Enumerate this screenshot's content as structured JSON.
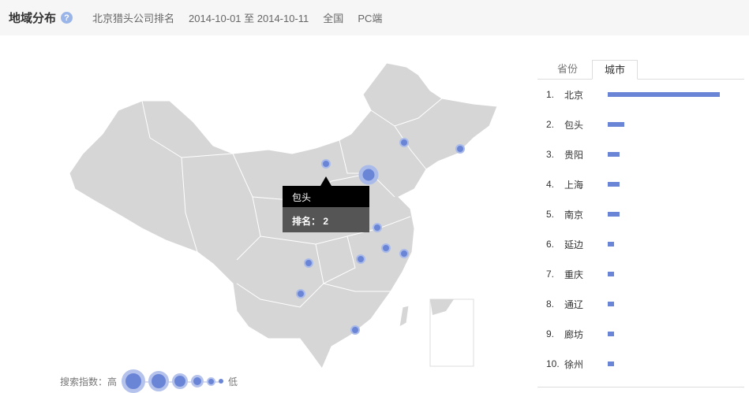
{
  "header": {
    "title": "地域分布",
    "help_icon": "question-icon",
    "keyword": "北京猎头公司排名",
    "date_range": "2014-10-01 至 2014-10-11",
    "region": "全国",
    "platform": "PC端"
  },
  "map": {
    "tooltip": {
      "city": "包头",
      "rank_label": "排名：",
      "rank": "2"
    },
    "legend": {
      "label": "搜索指数：高",
      "low": "低"
    },
    "fill_color": "#d6d6d6",
    "bubble_color": "#6b85d6"
  },
  "panel": {
    "tabs": [
      {
        "label": "省份",
        "active": false
      },
      {
        "label": "城市",
        "active": true
      }
    ],
    "ranking": [
      {
        "rank": "1.",
        "city": "北京",
        "value": 100
      },
      {
        "rank": "2.",
        "city": "包头",
        "value": 15
      },
      {
        "rank": "3.",
        "city": "贵阳",
        "value": 10.5
      },
      {
        "rank": "4.",
        "city": "上海",
        "value": 10.5
      },
      {
        "rank": "5.",
        "city": "南京",
        "value": 10.5
      },
      {
        "rank": "6.",
        "city": "延边",
        "value": 5.6
      },
      {
        "rank": "7.",
        "city": "重庆",
        "value": 5.6
      },
      {
        "rank": "8.",
        "city": "通辽",
        "value": 5.6
      },
      {
        "rank": "9.",
        "city": "廊坊",
        "value": 5.6
      },
      {
        "rank": "10.",
        "city": "徐州",
        "value": 5.6
      }
    ]
  }
}
